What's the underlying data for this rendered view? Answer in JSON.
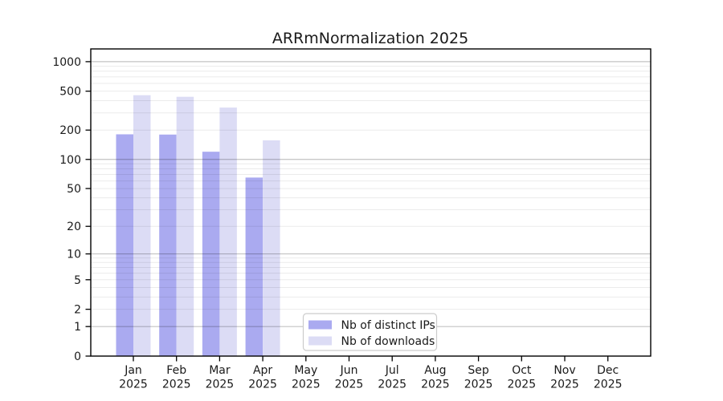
{
  "chart_data": {
    "type": "bar",
    "title": "ARRmNormalization 2025",
    "categories": [
      "Jan 2025",
      "Feb 2025",
      "Mar 2025",
      "Apr 2025",
      "May 2025",
      "Jun 2025",
      "Jul 2025",
      "Aug 2025",
      "Sep 2025",
      "Oct 2025",
      "Nov 2025",
      "Dec 2025"
    ],
    "series": [
      {
        "name": "Nb of distinct IPs",
        "color": "#aaaaf0",
        "values": [
          181,
          180,
          120,
          65,
          null,
          null,
          null,
          null,
          null,
          null,
          null,
          null
        ]
      },
      {
        "name": "Nb of downloads",
        "color": "#dcdcf5",
        "values": [
          455,
          438,
          340,
          157,
          null,
          null,
          null,
          null,
          null,
          null,
          null,
          null
        ]
      }
    ],
    "xlabel": "",
    "ylabel": "",
    "yscale": "symlog-log1p",
    "ylim": [
      0,
      1349
    ],
    "yticks": [
      0,
      1,
      2,
      5,
      10,
      20,
      50,
      100,
      200,
      500,
      1000
    ],
    "grid": "horizontal major (powers of 10) + minor (2-9 per decade), drawn over bars",
    "legend_position": "inside bottom-center",
    "colors": {
      "major_grid": "rgba(0,0,0,0.235)",
      "minor_grid": "rgba(0,0,0,0.08)",
      "spine": "#000000",
      "legend_border": "#cccccc",
      "background": "#ffffff"
    }
  }
}
